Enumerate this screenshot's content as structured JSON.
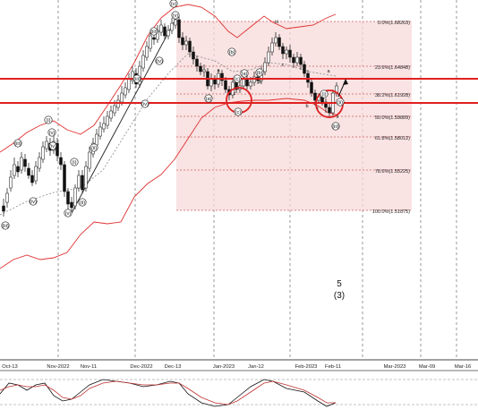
{
  "chart_data": {
    "type": "candlestick",
    "instrument_note": "",
    "x_axis": {
      "labels": [
        "Oct-13",
        "Nov-2022",
        "Nov-11",
        "Dec-2022",
        "Dec-13",
        "Jan-2023",
        "Jan-12",
        "Feb-2023",
        "Feb-11",
        "Mar-2023",
        "Mar-09",
        "Mar-16"
      ]
    },
    "fib_levels": [
      {
        "label": "0.0%(1.68263)",
        "value": 1.68263
      },
      {
        "label": "23.6%(1.64848)",
        "value": 1.64848
      },
      {
        "label": "38.2%(1.61928)",
        "value": 1.61928
      },
      {
        "label": "50.0%(1.59889)",
        "value": 1.59889
      },
      {
        "label": "61.8%(1.58012)",
        "value": 1.58012
      },
      {
        "label": "78.6%(1.55225)",
        "value": 1.55225
      },
      {
        "label": "100.0%(1.51875)",
        "value": 1.51875
      }
    ],
    "wave_labels": [
      "(iii)",
      "(iv)",
      "(v)",
      "(i)",
      "(ii)",
      "(iii)",
      "(iv)",
      "(v)",
      "(iii)",
      "(iv)",
      "(v)",
      "(a)",
      "(b)",
      "(c)",
      "(a)",
      "(b)",
      "(c)",
      "(i)",
      "(ii)",
      "(iii)",
      "a",
      "b",
      "c",
      "a",
      "b",
      "c",
      "i",
      "ii",
      "iii",
      "(i)",
      "(ii)",
      "(iii)",
      "(iv)",
      "(v)"
    ],
    "annotation": [
      "5",
      "(3)"
    ],
    "support_resistance_zones": 2,
    "indicators": [
      "bollinger_bands",
      "moving_average",
      "stochastic_oscillator"
    ],
    "grid": true,
    "fib_box_color": "#f7dada",
    "line_color": "#e03030",
    "candle_up_color": "#ffffff",
    "candle_down_color": "#111111",
    "wick_color": "#111111"
  }
}
